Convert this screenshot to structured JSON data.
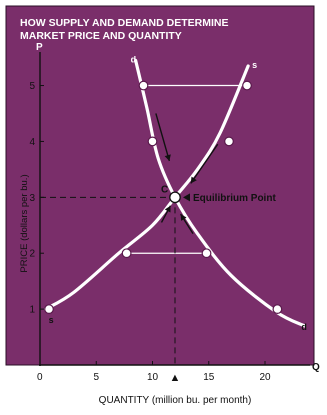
{
  "chart_data": {
    "type": "line",
    "title_lines": [
      "HOW SUPPLY AND DEMAND DETERMINE",
      "MARKET PRICE AND QUANTITY"
    ],
    "xlabel": "QUANTITY (million bu. per month)",
    "ylabel": "PRICE (dollars per bu.)",
    "x_axis_letter": "Q",
    "y_axis_letter": "P",
    "origin_label": "0",
    "xlim": [
      0,
      24
    ],
    "ylim": [
      0,
      5.6
    ],
    "x_ticks": [
      5,
      10,
      15,
      20
    ],
    "y_ticks": [
      1,
      2,
      3,
      4,
      5
    ],
    "grid": false,
    "series": [
      {
        "name": "s",
        "x": [
          0.5,
          3.0,
          7.0,
          10.0,
          12.0,
          14.0,
          16.0,
          18.5
        ],
        "y": [
          1.0,
          1.3,
          2.0,
          2.5,
          3.0,
          3.5,
          4.15,
          5.35
        ],
        "marked_points": [
          [
            0.8,
            1.0
          ],
          [
            7.7,
            2.0
          ],
          [
            12.0,
            3.0
          ],
          [
            16.8,
            4.0
          ],
          [
            18.4,
            5.0
          ]
        ]
      },
      {
        "name": "d",
        "x": [
          8.5,
          9.5,
          10.5,
          12.0,
          14.0,
          17.0,
          21.0,
          23.5
        ],
        "y": [
          5.45,
          4.6,
          3.7,
          3.0,
          2.35,
          1.6,
          0.95,
          0.7
        ],
        "marked_points": [
          [
            9.2,
            5.0
          ],
          [
            10.0,
            4.0
          ],
          [
            12.0,
            3.0
          ],
          [
            14.8,
            2.0
          ],
          [
            21.1,
            1.0
          ]
        ]
      }
    ],
    "equilibrium": {
      "x": 12,
      "y": 3,
      "letter": "C",
      "label": "Equilibrium Point"
    },
    "q_marker": "▲",
    "connectors": [
      {
        "from": [
          9.2,
          5.0
        ],
        "to": [
          18.4,
          5.0
        ]
      },
      {
        "from": [
          7.7,
          2.0
        ],
        "to": [
          14.8,
          2.0
        ]
      }
    ],
    "colors": {
      "background": "#7a2e6a",
      "title_text": "#ffffff",
      "curve": "#ffffff",
      "point_fill": "#ffffff",
      "point_stroke": "#5a1a4c",
      "ink": "#111111",
      "frame": "#2a0f26"
    }
  }
}
